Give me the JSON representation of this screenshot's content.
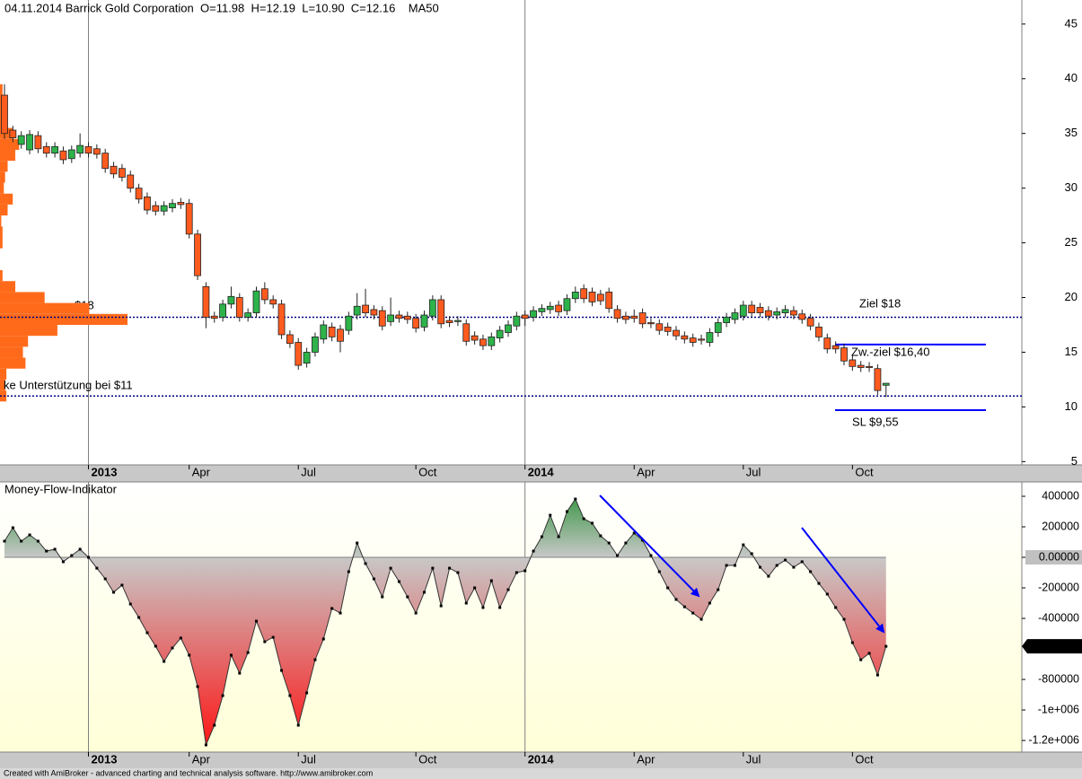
{
  "chart_data": [
    {
      "type": "candlestick",
      "title": "04.11.2014 Barrick Gold Corporation  O=11.98  H=12.19  L=10.90  C=12.16    MA50",
      "categories": [
        null,
        null,
        null,
        null,
        null,
        null,
        null,
        null,
        null,
        null,
        "2013",
        null,
        null,
        null,
        null,
        null,
        null,
        null,
        null,
        null,
        null,
        null,
        "Apr",
        null,
        null,
        null,
        null,
        null,
        null,
        null,
        null,
        null,
        null,
        null,
        null,
        "Jul",
        null,
        null,
        null,
        null,
        null,
        null,
        null,
        null,
        null,
        null,
        null,
        null,
        null,
        "Oct",
        null,
        null,
        null,
        null,
        null,
        null,
        null,
        null,
        null,
        null,
        null,
        null,
        "2014",
        null,
        null,
        null,
        null,
        null,
        null,
        null,
        null,
        null,
        null,
        null,
        null,
        "Apr",
        null,
        null,
        null,
        null,
        null,
        null,
        null,
        null,
        null,
        null,
        null,
        null,
        "Jul",
        null,
        null,
        null,
        null,
        null,
        null,
        null,
        null,
        null,
        null,
        null,
        null,
        "Oct",
        null,
        null,
        null,
        null
      ],
      "open": [
        38.5,
        35.3,
        34.0,
        33.5,
        34.8,
        33.8,
        33.2,
        33.4,
        32.7,
        33.2,
        33.8,
        33.6,
        33.2,
        32.0,
        31.8,
        31.2,
        30.0,
        29.2,
        28.4,
        27.9,
        28.2,
        28.7,
        28.6,
        25.8,
        21.0,
        18.3,
        18.2,
        19.4,
        20.0,
        18.2,
        18.6,
        20.8,
        19.8,
        19.4,
        16.6,
        15.9,
        14.0,
        15.0,
        16.2,
        17.3,
        17.1,
        17.0,
        18.4,
        19.3,
        18.9,
        18.8,
        17.8,
        18.4,
        18.3,
        18.1,
        17.3,
        18.3,
        19.8,
        17.9,
        17.8,
        17.6,
        16.5,
        16.2,
        15.6,
        16.3,
        16.8,
        17.4,
        18.4,
        18.2,
        18.7,
        18.9,
        19.3,
        18.8,
        19.9,
        20.8,
        20.5,
        20.3,
        20.5,
        18.9,
        18.3,
        18.3,
        18.6,
        17.7,
        17.6,
        17.3,
        17.0,
        16.5,
        16.3,
        16.2,
        15.9,
        16.8,
        17.7,
        18.0,
        18.3,
        19.3,
        19.1,
        18.8,
        18.4,
        18.6,
        18.8,
        18.5,
        18.1,
        17.3,
        16.3,
        15.6,
        15.4,
        14.3,
        13.8,
        13.7,
        13.5,
        11.98
      ],
      "high": [
        39.5,
        35.7,
        35.2,
        35.3,
        35.2,
        34.2,
        34.2,
        33.8,
        33.9,
        35.0,
        34.2,
        34.0,
        33.6,
        32.4,
        32.2,
        31.6,
        30.4,
        29.6,
        28.8,
        28.8,
        29.0,
        29.1,
        29.0,
        26.2,
        21.4,
        18.7,
        19.8,
        21.0,
        20.4,
        19.0,
        21.0,
        21.4,
        20.2,
        19.8,
        17.0,
        16.3,
        15.4,
        16.8,
        17.9,
        17.7,
        17.5,
        18.7,
        20.4,
        20.8,
        19.3,
        19.2,
        20.0,
        18.8,
        18.7,
        18.5,
        18.8,
        20.2,
        20.2,
        18.3,
        18.3,
        18.0,
        16.9,
        16.6,
        16.8,
        17.4,
        17.9,
        18.7,
        18.8,
        19.2,
        19.4,
        19.6,
        19.7,
        20.3,
        21.0,
        21.2,
        20.9,
        20.7,
        20.9,
        19.3,
        18.7,
        18.9,
        19.0,
        18.1,
        18.0,
        17.7,
        17.4,
        16.9,
        16.7,
        16.6,
        17.2,
        18.1,
        18.6,
        19.0,
        19.7,
        19.7,
        19.5,
        19.2,
        19.1,
        19.3,
        19.2,
        18.9,
        18.5,
        17.7,
        16.7,
        16.0,
        15.8,
        14.7,
        14.2,
        14.1,
        13.9,
        12.19
      ],
      "low": [
        34.5,
        34.2,
        33.6,
        33.1,
        33.2,
        32.8,
        32.8,
        32.2,
        32.3,
        32.8,
        32.8,
        32.7,
        31.4,
        30.9,
        30.6,
        29.6,
        28.6,
        27.6,
        27.5,
        27.5,
        27.8,
        28.1,
        25.4,
        21.6,
        17.2,
        17.7,
        17.8,
        19.0,
        17.8,
        17.8,
        18.2,
        19.4,
        19.0,
        16.2,
        15.4,
        13.4,
        13.6,
        14.6,
        15.8,
        16.0,
        15.0,
        16.6,
        18.0,
        18.2,
        18.0,
        17.0,
        17.4,
        17.7,
        17.6,
        16.8,
        16.9,
        17.9,
        17.2,
        17.3,
        17.4,
        15.6,
        15.7,
        15.2,
        15.2,
        15.9,
        16.4,
        17.0,
        17.4,
        17.8,
        18.3,
        18.5,
        18.3,
        18.4,
        19.5,
        19.5,
        19.2,
        19.3,
        18.6,
        17.7,
        17.6,
        17.7,
        17.2,
        17.2,
        16.6,
        16.5,
        16.1,
        15.8,
        15.5,
        15.7,
        15.5,
        16.4,
        17.3,
        17.6,
        17.9,
        18.2,
        18.2,
        17.9,
        18.0,
        18.2,
        18.0,
        17.6,
        17.0,
        16.0,
        14.9,
        14.9,
        13.8,
        13.3,
        13.2,
        13.2,
        11.1,
        10.9
      ],
      "close": [
        35.0,
        34.6,
        34.8,
        34.9,
        33.6,
        33.2,
        33.8,
        32.6,
        33.5,
        33.9,
        33.2,
        33.1,
        31.8,
        31.3,
        31.0,
        30.0,
        29.0,
        28.0,
        27.9,
        28.4,
        28.6,
        28.5,
        25.8,
        22.0,
        18.2,
        18.1,
        19.4,
        20.1,
        18.2,
        18.6,
        20.6,
        19.8,
        19.4,
        16.6,
        15.8,
        13.8,
        15.0,
        16.4,
        17.5,
        16.4,
        16.0,
        18.3,
        19.2,
        18.6,
        18.4,
        17.4,
        18.4,
        18.1,
        18.0,
        17.2,
        18.4,
        19.8,
        17.6,
        17.7,
        17.9,
        16.0,
        16.1,
        15.6,
        16.4,
        17.0,
        17.5,
        18.3,
        18.1,
        18.8,
        19.0,
        19.2,
        18.7,
        19.9,
        20.5,
        19.9,
        19.6,
        19.7,
        19.0,
        18.1,
        18.0,
        18.1,
        17.6,
        17.6,
        17.0,
        16.9,
        16.5,
        16.2,
        15.9,
        16.1,
        16.8,
        17.7,
        18.2,
        18.6,
        19.3,
        18.6,
        18.6,
        18.3,
        18.7,
        18.9,
        18.4,
        18.0,
        17.4,
        16.4,
        15.3,
        15.3,
        14.2,
        13.7,
        13.6,
        13.6,
        11.5,
        12.16
      ],
      "up_color": "#2db34a",
      "down_color": "#ff5b1f",
      "ylim": [
        4.7,
        47.2
      ],
      "yticks": [
        45,
        40,
        35,
        30,
        25,
        20,
        15,
        10,
        5
      ],
      "year_lines": true,
      "volume_profile": {
        "color": "#ff6a1a",
        "bins": [
          10.5,
          11.5,
          12.5,
          13.5,
          14.5,
          15.5,
          16.5,
          17.5,
          18.5,
          19.5,
          20.5,
          21.5,
          22.5,
          23.5,
          24.5,
          25.5,
          26.5,
          27.5,
          28.5,
          29.5,
          30.5,
          31.5,
          32.5,
          33.5,
          34.5,
          35.5,
          36.5,
          37.5,
          38.5,
          39.5
        ],
        "values": [
          5,
          4,
          5,
          20,
          18,
          22,
          45,
          100,
          70,
          35,
          12,
          2,
          0,
          0,
          2,
          2,
          1,
          6,
          10,
          3,
          4,
          6,
          12,
          15,
          10,
          3,
          2,
          2,
          2
        ]
      },
      "lines": [
        {
          "value": 18.2,
          "style": "dotted",
          "color": "#000080"
        },
        {
          "value": 11.0,
          "style": "dotted",
          "color": "#000080"
        },
        {
          "value": 15.7,
          "style": "solid",
          "color": "#0000ff"
        },
        {
          "value": 9.7,
          "style": "solid",
          "color": "#0000ff"
        }
      ],
      "annotations": [
        {
          "text": "$18"
        },
        {
          "text": "Ziel $18"
        },
        {
          "text": "Zw.-ziel $16,40"
        },
        {
          "text": "SL $9,55"
        },
        {
          "text": "ke Unterstützung bei $11"
        }
      ]
    },
    {
      "type": "area",
      "title": "Money-Flow-Indikator",
      "values": [
        106000,
        194000,
        106000,
        147000,
        106000,
        41000,
        53000,
        -29000,
        12000,
        53000,
        0,
        -71000,
        -141000,
        -229000,
        -182000,
        -306000,
        -394000,
        -494000,
        -582000,
        -682000,
        -594000,
        -529000,
        -641000,
        -847000,
        -1229000,
        -1100000,
        -906000,
        -641000,
        -759000,
        -624000,
        -418000,
        -553000,
        -524000,
        -741000,
        -906000,
        -1100000,
        -888000,
        -671000,
        -535000,
        -335000,
        -365000,
        -94000,
        94000,
        -41000,
        -141000,
        -259000,
        -71000,
        -159000,
        -259000,
        -365000,
        -229000,
        -71000,
        -318000,
        -71000,
        -100000,
        -300000,
        -200000,
        -329000,
        -153000,
        -329000,
        -212000,
        -100000,
        -88000,
        41000,
        135000,
        276000,
        135000,
        300000,
        382000,
        253000,
        224000,
        141000,
        94000,
        12000,
        94000,
        159000,
        112000,
        12000,
        -94000,
        -200000,
        -276000,
        -324000,
        -365000,
        -406000,
        -300000,
        -212000,
        -53000,
        -53000,
        82000,
        24000,
        -65000,
        -124000,
        -53000,
        -18000,
        -65000,
        -29000,
        -94000,
        -171000,
        -241000,
        -329000,
        -406000,
        -559000,
        -671000,
        -629000,
        -771000,
        -582869
      ],
      "positive_color": "#1e8c2a",
      "zero_color": "#c8c8c8",
      "negative_color": "#ff1010",
      "line_color": "#333333",
      "ylim": [
        -1276000,
        494000
      ],
      "yticks": [
        400000,
        200000,
        {
          "value": 0,
          "label": "0.00000"
        },
        -200000,
        -400000,
        -800000,
        {
          "value": -1000000,
          "label": "-1e+006"
        },
        {
          "value": -1200000,
          "label": "-1.2e+006"
        }
      ]
    }
  ],
  "footer": "Created with AmiBroker - advanced charting and technical analysis software. http://www.amibroker.com"
}
